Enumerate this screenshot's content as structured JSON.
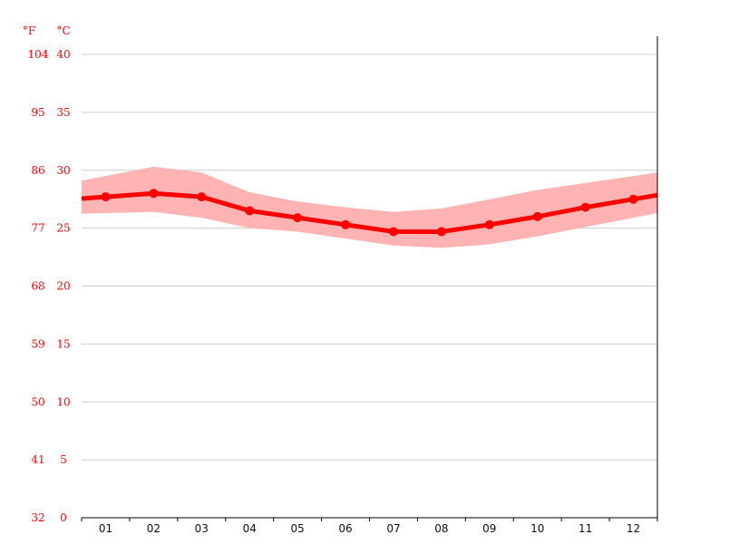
{
  "chart_data": {
    "type": "line",
    "categories": [
      "01",
      "02",
      "03",
      "04",
      "05",
      "06",
      "07",
      "08",
      "09",
      "10",
      "11",
      "12"
    ],
    "series": [
      {
        "values": [
          27.7,
          28.0,
          27.7,
          26.5,
          25.9,
          25.3,
          24.7,
          24.7,
          25.3,
          26.0,
          26.8,
          27.5
        ]
      }
    ],
    "band": {
      "upper": [
        29.5,
        30.3,
        29.8,
        28.1,
        27.3,
        26.8,
        26.4,
        26.7,
        27.5,
        28.3,
        28.9,
        29.5
      ],
      "lower": [
        26.3,
        26.4,
        25.9,
        25.0,
        24.7,
        24.1,
        23.5,
        23.3,
        23.6,
        24.3,
        25.1,
        25.9
      ]
    },
    "y_unit_c": "°C",
    "y_unit_f": "°F",
    "yticks_c": [
      "0",
      "5",
      "10",
      "15",
      "20",
      "25",
      "30",
      "35",
      "40"
    ],
    "yticks_f": [
      "32",
      "41",
      "50",
      "59",
      "68",
      "77",
      "86",
      "95",
      "104"
    ],
    "ylim": [
      0,
      40
    ],
    "grid": true,
    "colors": {
      "line": "#ff0000",
      "band": "#ffb3b3",
      "tick_labels": "#ff0000",
      "grid": "#cccccc",
      "axis": "#000000"
    }
  }
}
